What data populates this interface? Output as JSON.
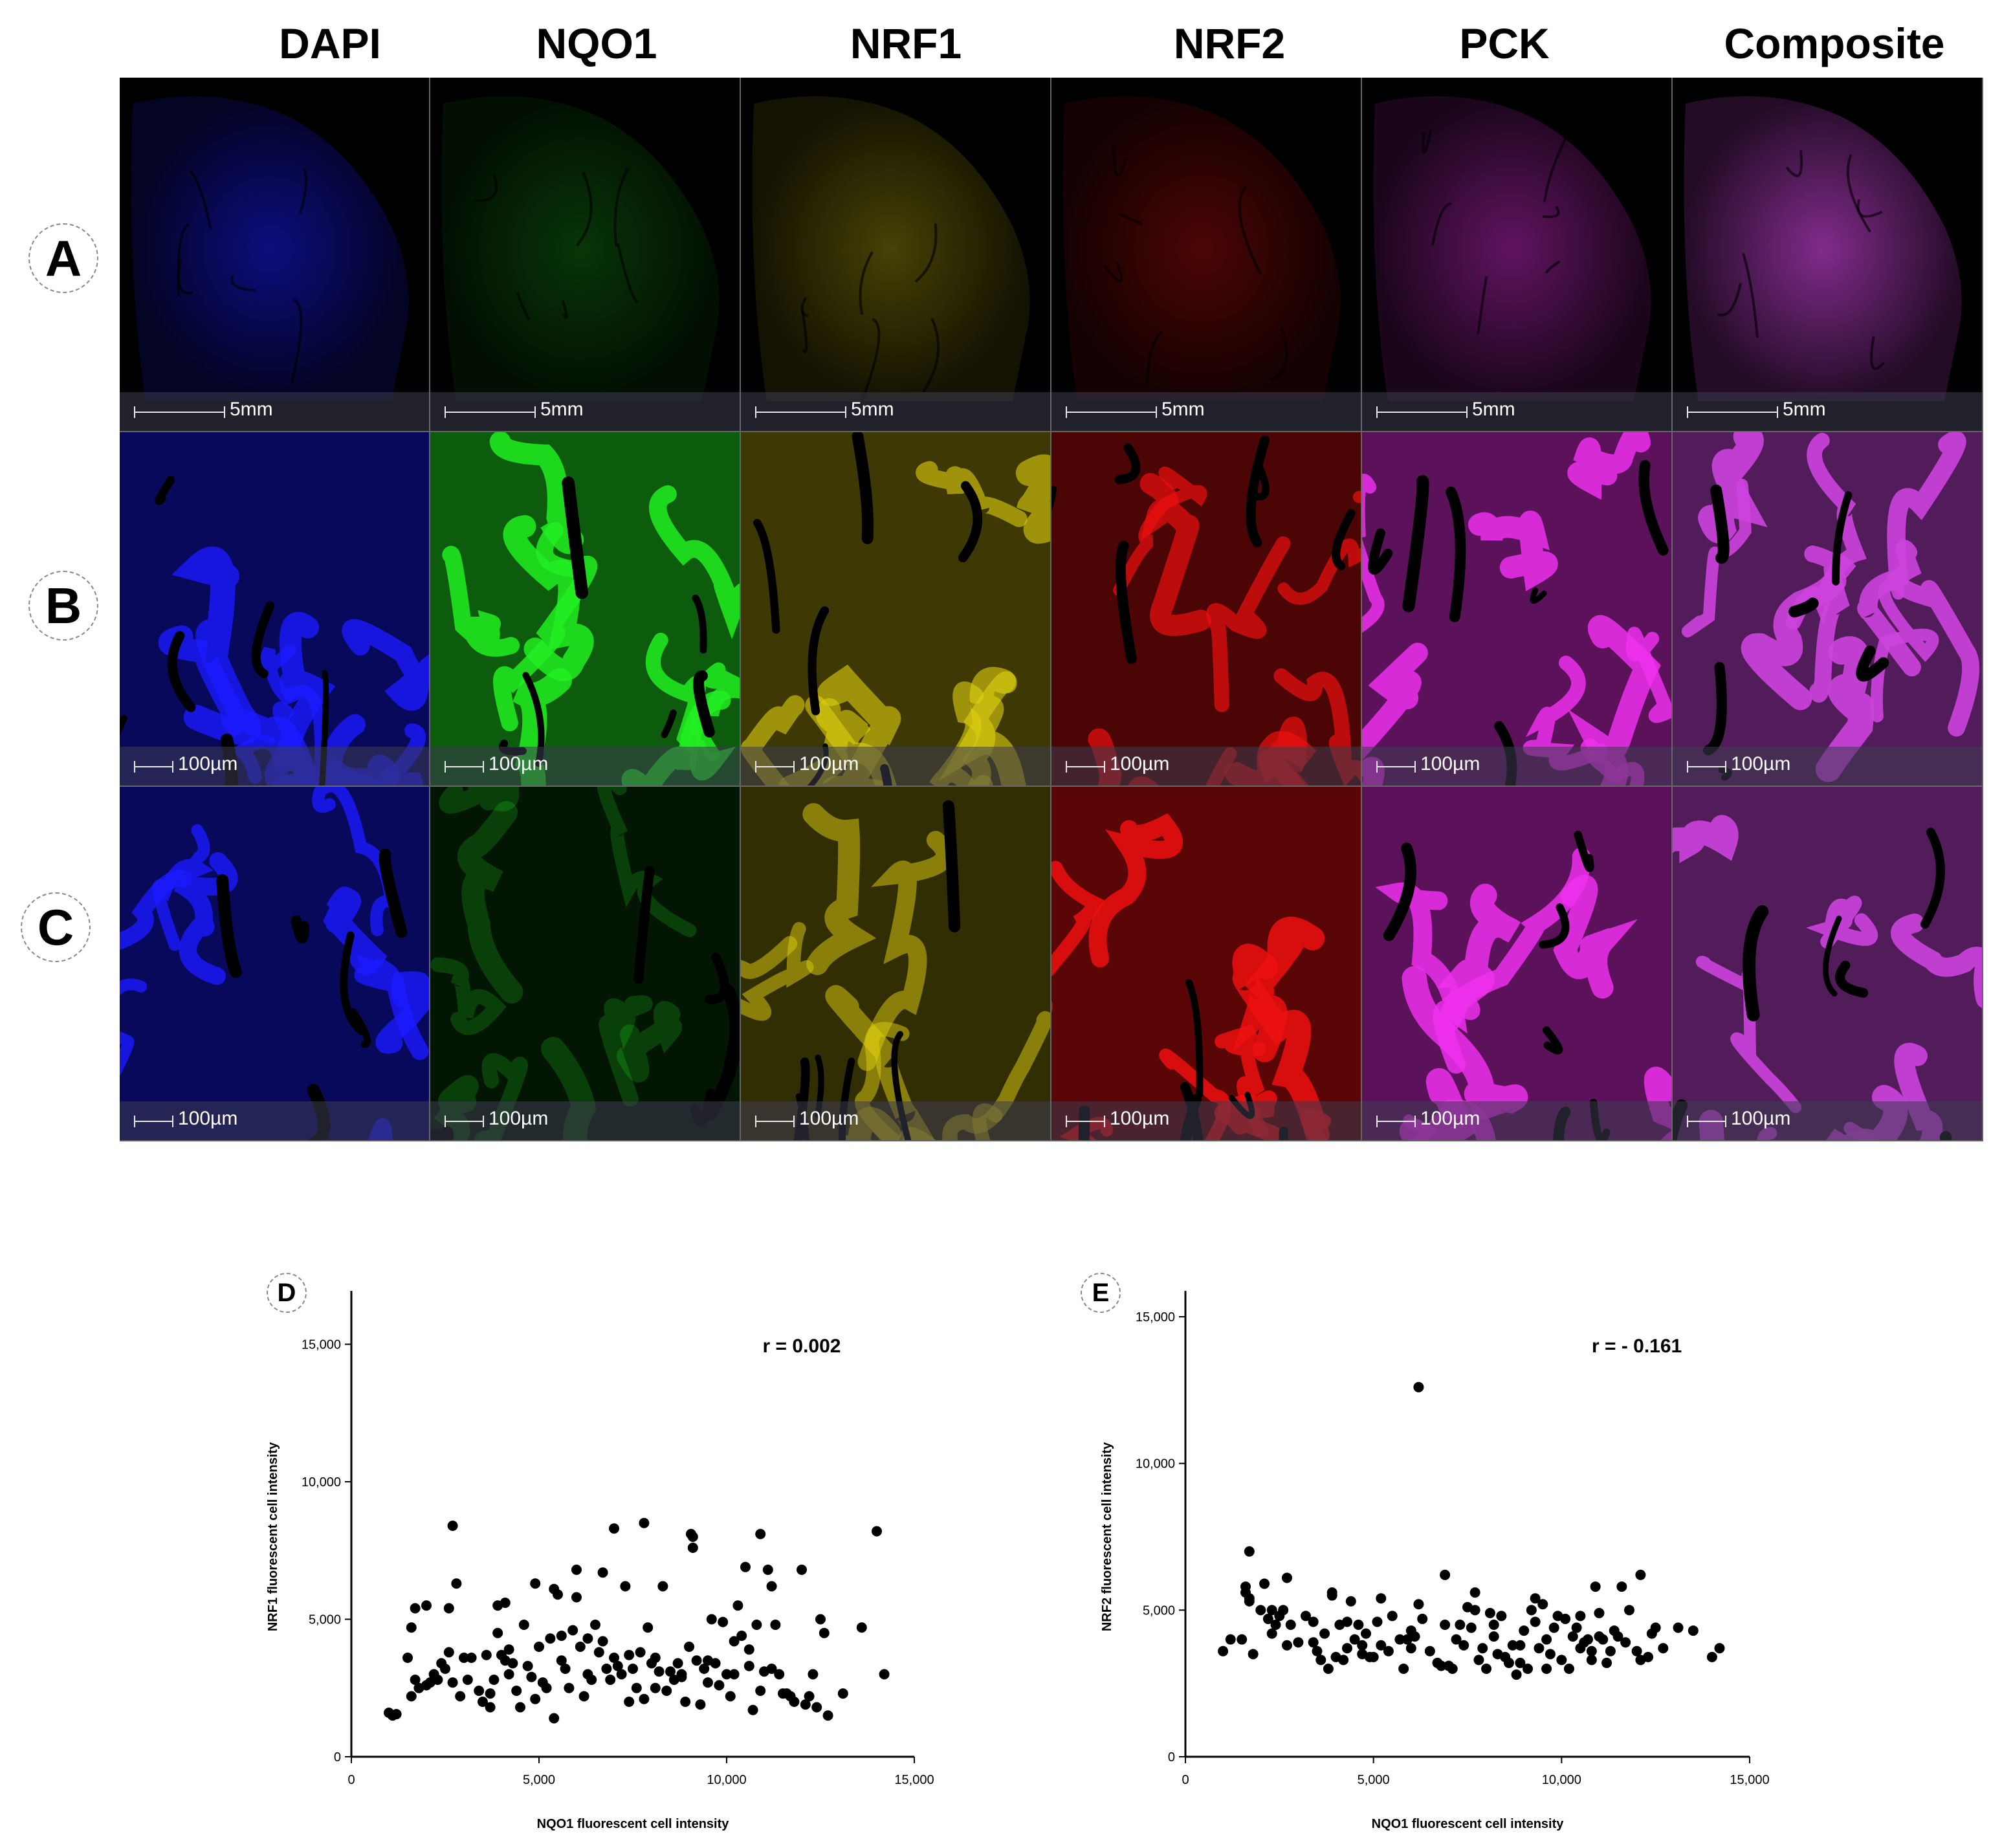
{
  "columns": [
    "DAPI",
    "NQO1",
    "NRF1",
    "NRF2",
    "PCK",
    "Composite"
  ],
  "rows": [
    {
      "label": "A",
      "scale": "5mm"
    },
    {
      "label": "B",
      "scale": "100µm"
    },
    {
      "label": "C",
      "scale": "100µm"
    }
  ],
  "channel_colors": {
    "DAPI": "#1a1aff",
    "NQO1": "#22ee22",
    "NRF1": "#e0d010",
    "NRF2": "#ee1010",
    "PCK": "#ee30ee",
    "Composite": "#cc44dd"
  },
  "plots": [
    {
      "label": "D",
      "annotation": "r = 0.002",
      "chart_data": {
        "type": "scatter",
        "xlabel": "NQO1 fluorescent cell intensity",
        "ylabel": "NRF1 fluorescent cell intensity",
        "xlim": [
          0,
          15000
        ],
        "ylim": [
          0,
          16000
        ],
        "xticks": [
          0,
          5000,
          10000,
          15000
        ],
        "xtick_labels": [
          "0",
          "5,000",
          "10,000",
          "15,000"
        ],
        "yticks": [
          0,
          5000,
          10000,
          15000
        ],
        "ytick_labels": [
          "0",
          "5,000",
          "10,000",
          "15,000"
        ],
        "x": [
          1000,
          1100,
          1200,
          1500,
          1600,
          1700,
          1700,
          1800,
          2000,
          2100,
          2200,
          2300,
          2400,
          2500,
          2600,
          2700,
          2800,
          2900,
          3000,
          3100,
          3200,
          3400,
          3500,
          3600,
          3700,
          3800,
          3900,
          4000,
          4100,
          4200,
          4300,
          4400,
          4500,
          4600,
          4700,
          4800,
          4900,
          5000,
          5100,
          5200,
          5300,
          5400,
          5500,
          5600,
          5700,
          5800,
          5900,
          6000,
          6100,
          6200,
          6300,
          6400,
          6500,
          6600,
          6700,
          6800,
          6900,
          7000,
          7100,
          7200,
          7300,
          7400,
          7500,
          7600,
          7700,
          7800,
          7900,
          8000,
          8100,
          8200,
          8300,
          8400,
          8500,
          8600,
          8700,
          8800,
          8900,
          9000,
          9050,
          9100,
          9200,
          9300,
          9400,
          9500,
          9600,
          9700,
          9800,
          9900,
          10000,
          10100,
          10200,
          10300,
          10400,
          10500,
          10600,
          10700,
          10800,
          10900,
          11000,
          11100,
          11200,
          11300,
          11400,
          11500,
          11600,
          11700,
          11800,
          12000,
          12100,
          12200,
          12400,
          12500,
          12600,
          12700,
          13100,
          13600,
          14000,
          14200,
          2700,
          7000,
          7800,
          9100,
          10900,
          6000,
          6700,
          3900,
          4100,
          5400,
          1600,
          2000,
          2600,
          3700,
          4200,
          4900,
          5600,
          6300,
          7400,
          8100,
          8800,
          9500,
          10200,
          10600,
          11200,
          12300
        ],
        "y": [
          1600,
          1500,
          1550,
          3600,
          2200,
          2800,
          5400,
          2500,
          5500,
          2700,
          3000,
          2800,
          3400,
          3200,
          5400,
          2700,
          6300,
          2200,
          3600,
          2800,
          3600,
          2400,
          2000,
          3700,
          1800,
          2800,
          5500,
          3700,
          5600,
          3000,
          3400,
          2400,
          1800,
          4800,
          3300,
          2900,
          6300,
          4000,
          2700,
          2500,
          4300,
          1400,
          5900,
          3500,
          3200,
          2500,
          4600,
          6800,
          4000,
          2200,
          3000,
          2800,
          4800,
          3800,
          6700,
          3200,
          2800,
          3600,
          3300,
          3000,
          6200,
          2000,
          3200,
          2500,
          3800,
          2100,
          4700,
          3400,
          2500,
          3100,
          6200,
          2400,
          3100,
          2800,
          3400,
          3000,
          2000,
          4000,
          8100,
          7600,
          3500,
          1900,
          3200,
          2700,
          5000,
          3400,
          2600,
          4900,
          3000,
          2200,
          3000,
          5500,
          4400,
          6900,
          3300,
          1700,
          4800,
          2400,
          3100,
          6800,
          6200,
          4800,
          3000,
          2300,
          2300,
          2200,
          2000,
          6800,
          1900,
          2200,
          1800,
          5000,
          4500,
          1500,
          2300,
          4700,
          8200,
          3000,
          8400,
          8300,
          8500,
          8000,
          8100,
          5800,
          4200,
          4500,
          3500,
          6100,
          4700,
          2600,
          3800,
          2300,
          3900,
          2100,
          4400,
          4300,
          3700,
          3600,
          2900,
          3500,
          4200,
          3900,
          3200,
          3000
        ]
      }
    },
    {
      "label": "E",
      "annotation": "r = - 0.161",
      "chart_data": {
        "type": "scatter",
        "xlabel": "NQO1 fluorescent cell intensity",
        "ylabel": "NRF2 fluorescent cell intensity",
        "xlim": [
          0,
          15000
        ],
        "ylim": [
          0,
          15000
        ],
        "xticks": [
          0,
          5000,
          10000,
          15000
        ],
        "xtick_labels": [
          "0",
          "5,000",
          "10,000",
          "15,000"
        ],
        "yticks": [
          0,
          5000,
          10000,
          15000
        ],
        "ytick_labels": [
          "0",
          "5,000",
          "10,000",
          "15,000"
        ],
        "x": [
          1000,
          1200,
          1500,
          1600,
          1700,
          1700,
          1800,
          2000,
          2100,
          2200,
          2300,
          2400,
          2500,
          2600,
          2700,
          2800,
          3000,
          3200,
          3400,
          3500,
          3600,
          3700,
          3800,
          3900,
          4000,
          4100,
          4200,
          4300,
          4400,
          4500,
          4600,
          4700,
          4800,
          4900,
          5000,
          5100,
          5200,
          5400,
          5500,
          5700,
          5800,
          5900,
          6000,
          6100,
          6200,
          6300,
          6500,
          6700,
          6800,
          6900,
          7000,
          7100,
          7200,
          7300,
          7400,
          7500,
          7600,
          7700,
          7800,
          7900,
          8000,
          8100,
          8200,
          8300,
          8400,
          8500,
          8600,
          8700,
          8800,
          8900,
          9000,
          9100,
          9200,
          9300,
          9400,
          9500,
          9600,
          9700,
          9800,
          9900,
          10000,
          10100,
          10200,
          10300,
          10400,
          10500,
          10600,
          10700,
          10800,
          10900,
          11000,
          11100,
          11200,
          11300,
          11400,
          11500,
          11600,
          11700,
          12000,
          12100,
          12300,
          12400,
          12500,
          12700,
          13100,
          13500,
          14000,
          14200,
          6200,
          1700,
          1600,
          2700,
          3900,
          6900,
          7700,
          9300,
          11000,
          12100,
          2300,
          4300,
          5200,
          6000,
          8200,
          10500,
          11800,
          3400,
          4700,
          8900,
          9600,
          10800
        ],
        "y": [
          3600,
          4000,
          4000,
          5800,
          5300,
          5400,
          3500,
          5000,
          5900,
          4700,
          5000,
          4500,
          4800,
          5000,
          3800,
          4500,
          3900,
          4800,
          4600,
          3600,
          3300,
          4200,
          3000,
          5600,
          3400,
          4500,
          3300,
          3700,
          5300,
          4000,
          4500,
          3800,
          4200,
          3400,
          3400,
          4600,
          5400,
          3600,
          4800,
          4000,
          3000,
          4000,
          3700,
          4100,
          5200,
          4700,
          3600,
          3200,
          3100,
          4500,
          3100,
          3000,
          4000,
          4500,
          3800,
          5100,
          4400,
          5600,
          3300,
          3700,
          3000,
          4900,
          4100,
          3500,
          4800,
          3400,
          3200,
          3800,
          2800,
          3200,
          4300,
          3000,
          5000,
          4600,
          3700,
          5200,
          3000,
          3500,
          4400,
          4800,
          3300,
          4700,
          3000,
          4100,
          4400,
          3700,
          3900,
          4000,
          3300,
          5800,
          4100,
          4000,
          3200,
          3600,
          4300,
          4100,
          5800,
          3900,
          3600,
          6200,
          3400,
          4200,
          4400,
          3700,
          4400,
          4300,
          3400,
          3700,
          12600,
          7000,
          5600,
          6100,
          5500,
          6200,
          5000,
          5400,
          4900,
          3300,
          4200,
          4600,
          3800,
          4300,
          4500,
          4800,
          5000,
          3900,
          3500,
          3800,
          4000,
          3600
        ]
      }
    }
  ]
}
